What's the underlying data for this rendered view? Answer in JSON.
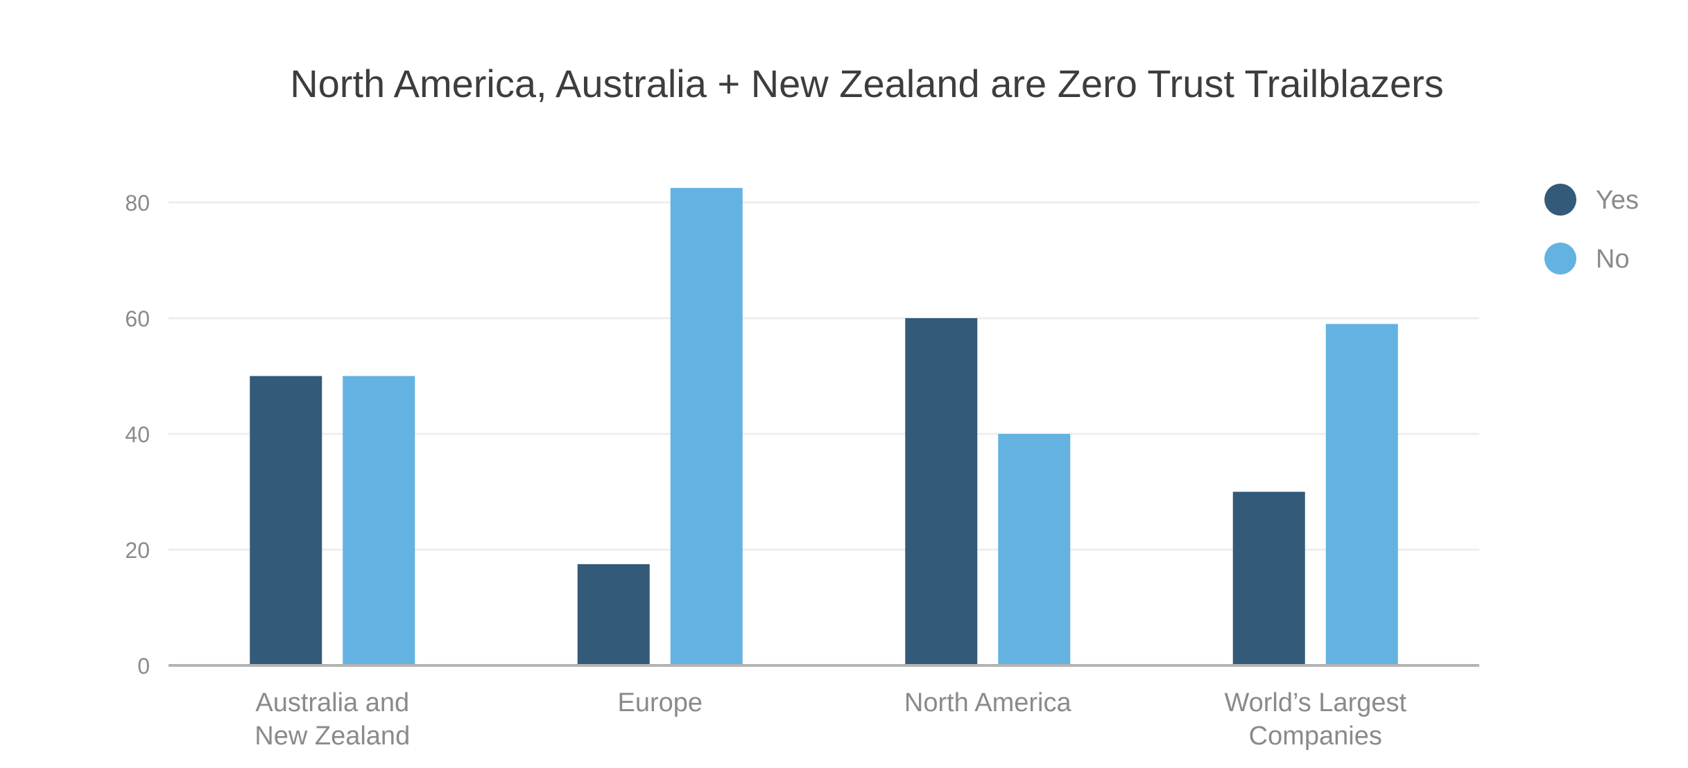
{
  "chart_data": {
    "type": "bar",
    "title": "North America, Australia + New Zealand are Zero Trust Trailblazers",
    "categories": [
      [
        "Australia and",
        "New Zealand"
      ],
      [
        "Europe"
      ],
      [
        "North America"
      ],
      [
        "World’s Largest",
        "Companies"
      ]
    ],
    "series": [
      {
        "name": "Yes",
        "color": "#345a7a",
        "values": [
          50,
          17.5,
          60,
          30
        ]
      },
      {
        "name": "No",
        "color": "#63b2e2",
        "values": [
          50,
          82.5,
          40,
          59
        ]
      }
    ],
    "ylim": [
      0,
      80
    ],
    "yticks": [
      0,
      20,
      40,
      60,
      80
    ],
    "xlabel": "",
    "ylabel": "",
    "grid": true,
    "legend": "right"
  }
}
